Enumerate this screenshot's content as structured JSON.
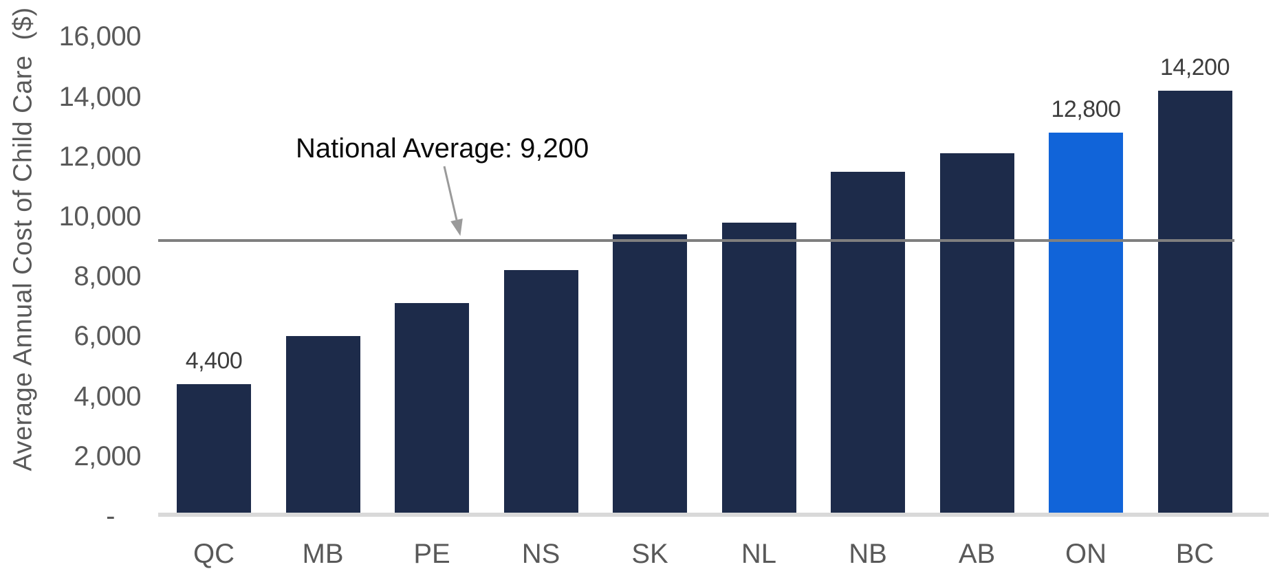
{
  "chart_data": {
    "type": "bar",
    "title": "",
    "xlabel": "",
    "ylabel": "Average Annual Cost of Child Care  ($)",
    "categories": [
      "QC",
      "MB",
      "PE",
      "NS",
      "SK",
      "NL",
      "NB",
      "AB",
      "ON",
      "BC"
    ],
    "values": [
      4400,
      6000,
      7100,
      8200,
      9400,
      9800,
      11500,
      12100,
      12800,
      14200
    ],
    "highlight_category": "ON",
    "labeled_points": [
      {
        "category": "QC",
        "label": "4,400"
      },
      {
        "category": "ON",
        "label": "12,800"
      },
      {
        "category": "BC",
        "label": "14,200"
      }
    ],
    "reference_line": {
      "value": 9200,
      "label": "National Average: 9,200"
    },
    "ylim": [
      0,
      16000
    ],
    "ytick_step": 2000,
    "yticks": [
      {
        "value": 0,
        "label": "-"
      },
      {
        "value": 2000,
        "label": "2,000"
      },
      {
        "value": 4000,
        "label": "4,000"
      },
      {
        "value": 6000,
        "label": "6,000"
      },
      {
        "value": 8000,
        "label": "8,000"
      },
      {
        "value": 10000,
        "label": "10,000"
      },
      {
        "value": 12000,
        "label": "12,000"
      },
      {
        "value": 14000,
        "label": "14,000"
      },
      {
        "value": 16000,
        "label": "16,000"
      }
    ],
    "grid": false,
    "legend": false,
    "colors": {
      "bar": "#1d2b4a",
      "highlight_bar": "#1164d9",
      "reference_line": "#7f7f7f",
      "arrow": "#9a9a9a",
      "baseline": "#d9d9d9",
      "axis_text": "#595959",
      "value_label_text": "#3d3d3d",
      "annotation_text": "#0a0a0a"
    }
  }
}
